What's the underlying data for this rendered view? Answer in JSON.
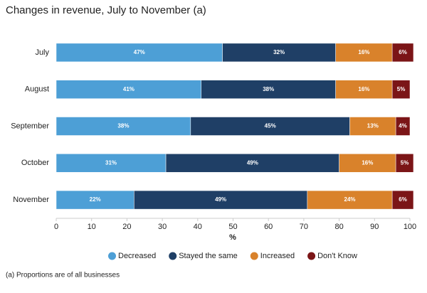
{
  "chart_data": {
    "type": "stacked-bar-horizontal",
    "title": "Changes in revenue, July to November (a)",
    "x_label": "%",
    "footnote": "(a) Proportions are of all businesses",
    "categories": [
      "July",
      "August",
      "September",
      "October",
      "November"
    ],
    "series": [
      {
        "name": "Decreased",
        "color": "#4d9fd6",
        "values": [
          47,
          41,
          38,
          31,
          22
        ],
        "value_labels": [
          "47%",
          "41%",
          "38%",
          "31%",
          "22%"
        ]
      },
      {
        "name": "Stayed the same",
        "color": "#1f3f66",
        "values": [
          32,
          38,
          45,
          49,
          49
        ],
        "value_labels": [
          "32%",
          "38%",
          "45%",
          "49%",
          "49%"
        ]
      },
      {
        "name": "Increased",
        "color": "#d9822b",
        "values": [
          16,
          16,
          13,
          16,
          24
        ],
        "value_labels": [
          "16%",
          "16%",
          "13%",
          "16%",
          "24%"
        ]
      },
      {
        "name": "Don't Know",
        "color": "#7b1517",
        "values": [
          6,
          5,
          4,
          5,
          6
        ],
        "value_labels": [
          "6%",
          "5%",
          "4%",
          "5%",
          "6%"
        ]
      }
    ],
    "xlim": [
      0,
      100
    ],
    "xticks": [
      0,
      10,
      20,
      30,
      40,
      50,
      60,
      70,
      80,
      90,
      100
    ],
    "legend": "bottom"
  }
}
